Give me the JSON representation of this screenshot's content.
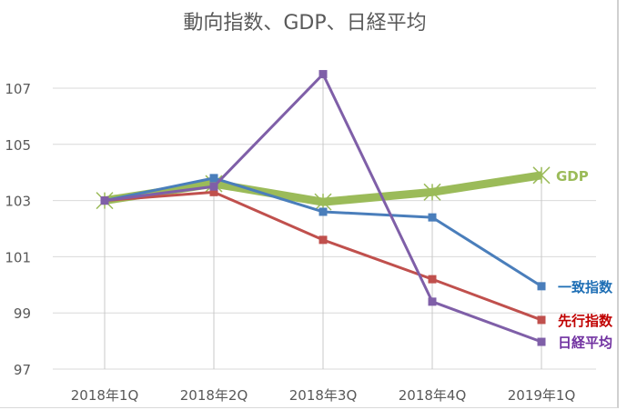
{
  "chart_data": {
    "type": "line",
    "title": "動向指数、GDP、日経平均",
    "xlabel": "",
    "ylabel": "",
    "categories": [
      "2018年1Q",
      "2018年2Q",
      "2018年3Q",
      "2018年4Q",
      "2019年1Q"
    ],
    "yticks": [
      97,
      99,
      101,
      103,
      105,
      107
    ],
    "ylim": [
      97,
      108.5
    ],
    "grid": true,
    "legend": "direct labels at line ends (right)",
    "series": [
      {
        "name": "一致指数",
        "color": "#4a7ebb",
        "label_color": "#1f6fb5",
        "marker": "square",
        "width": 3,
        "values": [
          103.0,
          103.8,
          102.6,
          102.4,
          99.95
        ]
      },
      {
        "name": "先行指数",
        "color": "#c0504d",
        "label_color": "#c00000",
        "marker": "square",
        "width": 3,
        "values": [
          103.0,
          103.3,
          101.6,
          100.2,
          98.75
        ]
      },
      {
        "name": "日経平均",
        "color": "#7f5fa8",
        "label_color": "#7030a0",
        "marker": "square",
        "width": 3,
        "values": [
          103.0,
          103.5,
          107.5,
          99.4,
          97.97
        ]
      },
      {
        "name": "GDP",
        "color": "#9bbb59",
        "label_color": "#9bbb59",
        "marker": "star",
        "width": 9,
        "values": [
          103.0,
          103.6,
          102.95,
          103.3,
          103.9
        ]
      }
    ]
  }
}
